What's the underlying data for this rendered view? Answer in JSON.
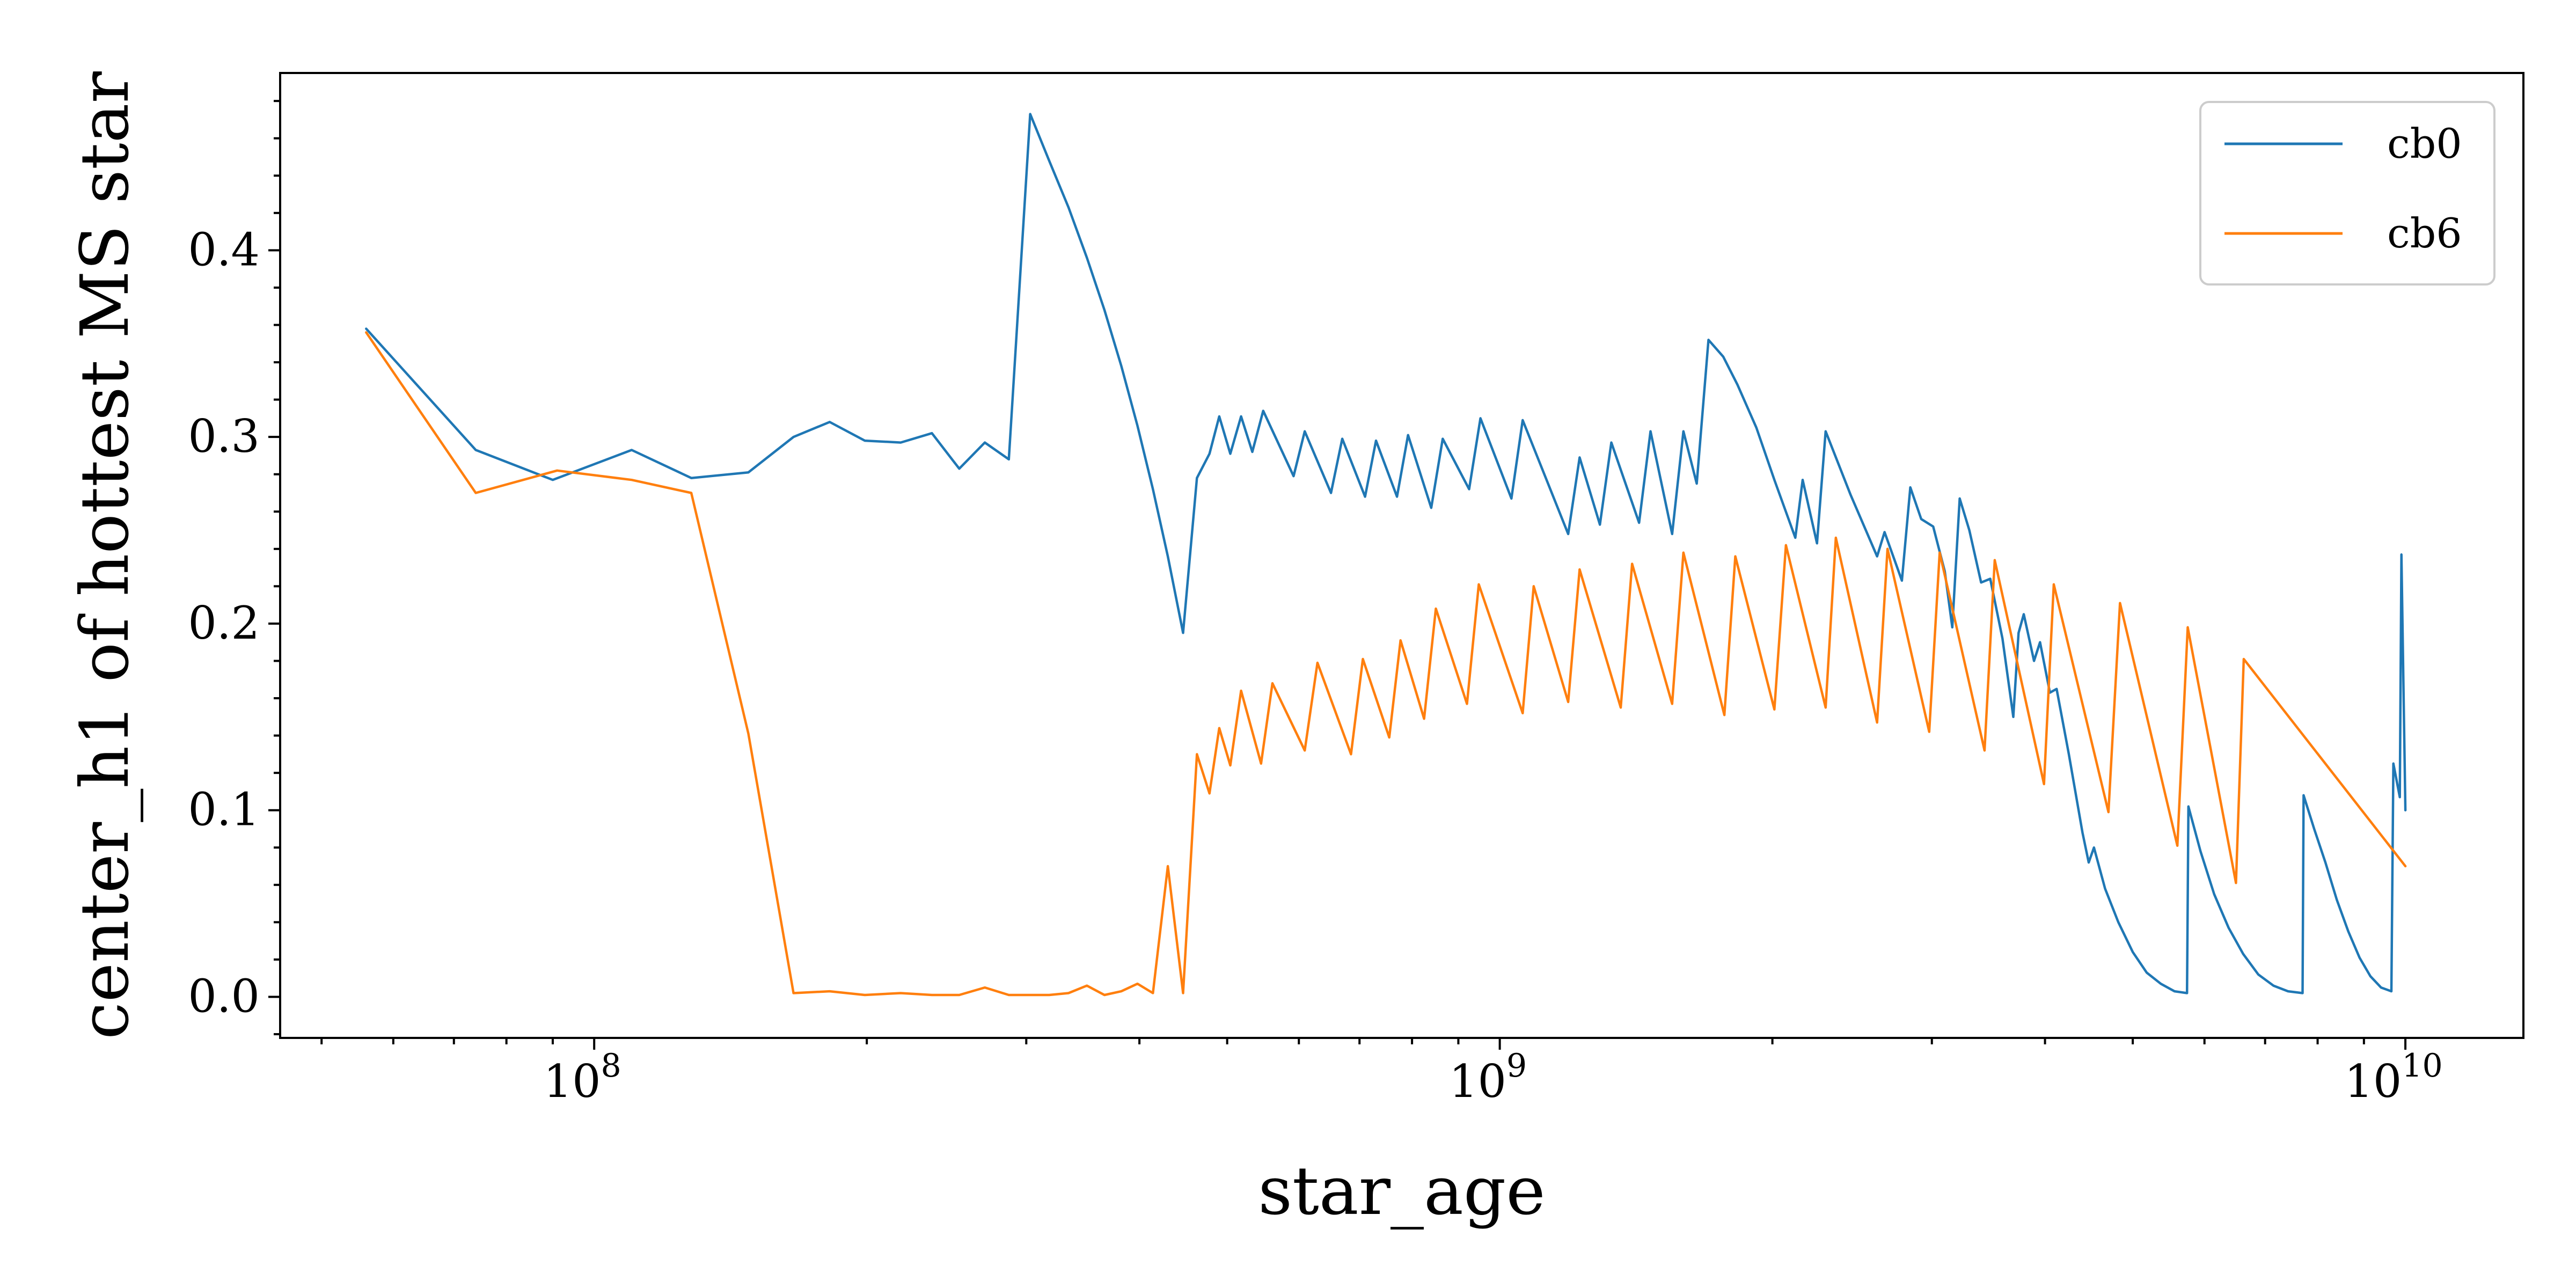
{
  "chart_data": {
    "type": "line",
    "xscale": "log",
    "xlabel": "star_age",
    "ylabel": "center_h1 of hottest MS star",
    "xlim": [
      45000000,
      13500000000
    ],
    "ylim": [
      -0.022,
      0.495
    ],
    "x_major_ticks": [
      {
        "value": 100000000,
        "base": "10",
        "exp": "8"
      },
      {
        "value": 1000000000,
        "base": "10",
        "exp": "9"
      },
      {
        "value": 10000000000,
        "base": "10",
        "exp": "10"
      }
    ],
    "y_ticks": [
      {
        "value": 0.0,
        "label": "0.0"
      },
      {
        "value": 0.1,
        "label": "0.1"
      },
      {
        "value": 0.2,
        "label": "0.2"
      },
      {
        "value": 0.3,
        "label": "0.3"
      },
      {
        "value": 0.4,
        "label": "0.4"
      }
    ],
    "y_minor_step": 0.02,
    "grid": false,
    "legend_position": "top-right",
    "series": [
      {
        "name": "cb0",
        "color": "#1f77b4",
        "points": [
          [
            56000000,
            0.358
          ],
          [
            74000000,
            0.293
          ],
          [
            90000000,
            0.277
          ],
          [
            110000000,
            0.293
          ],
          [
            128000000,
            0.278
          ],
          [
            148000000,
            0.281
          ],
          [
            166000000,
            0.3
          ],
          [
            182000000,
            0.308
          ],
          [
            199000000,
            0.298
          ],
          [
            218000000,
            0.297
          ],
          [
            236000000,
            0.302
          ],
          [
            253000000,
            0.283
          ],
          [
            270000000,
            0.297
          ],
          [
            287000000,
            0.288
          ],
          [
            303000000,
            0.473
          ],
          [
            318000000,
            0.448
          ],
          [
            334000000,
            0.423
          ],
          [
            350000000,
            0.396
          ],
          [
            366000000,
            0.368
          ],
          [
            382000000,
            0.338
          ],
          [
            398000000,
            0.306
          ],
          [
            414000000,
            0.272
          ],
          [
            430000000,
            0.236
          ],
          [
            447000000,
            0.195
          ],
          [
            463000000,
            0.278
          ],
          [
            478000000,
            0.291
          ],
          [
            490000000,
            0.311
          ],
          [
            504000000,
            0.291
          ],
          [
            518000000,
            0.311
          ],
          [
            533000000,
            0.292
          ],
          [
            548000000,
            0.314
          ],
          [
            592000000,
            0.279
          ],
          [
            609000000,
            0.303
          ],
          [
            651000000,
            0.27
          ],
          [
            670000000,
            0.299
          ],
          [
            710000000,
            0.268
          ],
          [
            730000000,
            0.298
          ],
          [
            770000000,
            0.268
          ],
          [
            792000000,
            0.301
          ],
          [
            840000000,
            0.262
          ],
          [
            865000000,
            0.299
          ],
          [
            925000000,
            0.272
          ],
          [
            952000000,
            0.31
          ],
          [
            1030000000,
            0.267
          ],
          [
            1060000000,
            0.309
          ],
          [
            1190000000,
            0.248
          ],
          [
            1225000000,
            0.289
          ],
          [
            1290000000,
            0.253
          ],
          [
            1328000000,
            0.297
          ],
          [
            1425000000,
            0.254
          ],
          [
            1467000000,
            0.303
          ],
          [
            1550000000,
            0.248
          ],
          [
            1595000000,
            0.303
          ],
          [
            1650000000,
            0.275
          ],
          [
            1700000000,
            0.352
          ],
          [
            1765000000,
            0.343
          ],
          [
            1830000000,
            0.328
          ],
          [
            1920000000,
            0.305
          ],
          [
            2010000000,
            0.277
          ],
          [
            2120000000,
            0.246
          ],
          [
            2160000000,
            0.277
          ],
          [
            2240000000,
            0.243
          ],
          [
            2290000000,
            0.303
          ],
          [
            2440000000,
            0.269
          ],
          [
            2610000000,
            0.236
          ],
          [
            2660000000,
            0.249
          ],
          [
            2780000000,
            0.223
          ],
          [
            2840000000,
            0.273
          ],
          [
            2920000000,
            0.256
          ],
          [
            3010000000,
            0.252
          ],
          [
            3100000000,
            0.228
          ],
          [
            3160000000,
            0.198
          ],
          [
            3220000000,
            0.267
          ],
          [
            3300000000,
            0.25
          ],
          [
            3400000000,
            0.222
          ],
          [
            3480000000,
            0.224
          ],
          [
            3590000000,
            0.192
          ],
          [
            3690000000,
            0.15
          ],
          [
            3740000000,
            0.195
          ],
          [
            3790000000,
            0.205
          ],
          [
            3890000000,
            0.18
          ],
          [
            3950000000,
            0.19
          ],
          [
            4050000000,
            0.163
          ],
          [
            4120000000,
            0.165
          ],
          [
            4250000000,
            0.13
          ],
          [
            4400000000,
            0.088
          ],
          [
            4470000000,
            0.072
          ],
          [
            4530000000,
            0.08
          ],
          [
            4660000000,
            0.058
          ],
          [
            4820000000,
            0.04
          ],
          [
            5000000000,
            0.024
          ],
          [
            5180000000,
            0.013
          ],
          [
            5370000000,
            0.007
          ],
          [
            5560000000,
            0.003
          ],
          [
            5740000000,
            0.002
          ],
          [
            5760000000,
            0.102
          ],
          [
            5940000000,
            0.078
          ],
          [
            6150000000,
            0.055
          ],
          [
            6380000000,
            0.037
          ],
          [
            6620000000,
            0.023
          ],
          [
            6880000000,
            0.012
          ],
          [
            7150000000,
            0.006
          ],
          [
            7420000000,
            0.003
          ],
          [
            7700000000,
            0.002
          ],
          [
            7720000000,
            0.108
          ],
          [
            7930000000,
            0.09
          ],
          [
            8160000000,
            0.072
          ],
          [
            8400000000,
            0.052
          ],
          [
            8650000000,
            0.035
          ],
          [
            8900000000,
            0.021
          ],
          [
            9150000000,
            0.011
          ],
          [
            9400000000,
            0.005
          ],
          [
            9650000000,
            0.003
          ],
          [
            9700000000,
            0.125
          ],
          [
            9860000000,
            0.107
          ],
          [
            9900000000,
            0.237
          ],
          [
            10000000000,
            0.1
          ]
        ]
      },
      {
        "name": "cb6",
        "color": "#ff7f0e",
        "points": [
          [
            56000000,
            0.356
          ],
          [
            74000000,
            0.27
          ],
          [
            91000000,
            0.282
          ],
          [
            110000000,
            0.277
          ],
          [
            128000000,
            0.27
          ],
          [
            148000000,
            0.141
          ],
          [
            166000000,
            0.002
          ],
          [
            182000000,
            0.003
          ],
          [
            199000000,
            0.001
          ],
          [
            218000000,
            0.002
          ],
          [
            236000000,
            0.001
          ],
          [
            253000000,
            0.001
          ],
          [
            270000000,
            0.005
          ],
          [
            287000000,
            0.001
          ],
          [
            303000000,
            0.001
          ],
          [
            318000000,
            0.001
          ],
          [
            334000000,
            0.002
          ],
          [
            350000000,
            0.006
          ],
          [
            366000000,
            0.001
          ],
          [
            382000000,
            0.003
          ],
          [
            398000000,
            0.007
          ],
          [
            414000000,
            0.002
          ],
          [
            430000000,
            0.07
          ],
          [
            447000000,
            0.002
          ],
          [
            463000000,
            0.13
          ],
          [
            478000000,
            0.109
          ],
          [
            490000000,
            0.144
          ],
          [
            504000000,
            0.124
          ],
          [
            518000000,
            0.164
          ],
          [
            545000000,
            0.125
          ],
          [
            561000000,
            0.168
          ],
          [
            609000000,
            0.132
          ],
          [
            629000000,
            0.179
          ],
          [
            685000000,
            0.13
          ],
          [
            706000000,
            0.181
          ],
          [
            755000000,
            0.139
          ],
          [
            777000000,
            0.191
          ],
          [
            825000000,
            0.149
          ],
          [
            850000000,
            0.208
          ],
          [
            920000000,
            0.157
          ],
          [
            948000000,
            0.221
          ],
          [
            1060000000,
            0.152
          ],
          [
            1090000000,
            0.22
          ],
          [
            1190000000,
            0.158
          ],
          [
            1225000000,
            0.229
          ],
          [
            1360000000,
            0.155
          ],
          [
            1400000000,
            0.232
          ],
          [
            1550000000,
            0.157
          ],
          [
            1595000000,
            0.238
          ],
          [
            1770000000,
            0.151
          ],
          [
            1820000000,
            0.236
          ],
          [
            2010000000,
            0.154
          ],
          [
            2070000000,
            0.242
          ],
          [
            2290000000,
            0.155
          ],
          [
            2350000000,
            0.246
          ],
          [
            2610000000,
            0.147
          ],
          [
            2680000000,
            0.24
          ],
          [
            2980000000,
            0.142
          ],
          [
            3060000000,
            0.238
          ],
          [
            3430000000,
            0.132
          ],
          [
            3520000000,
            0.234
          ],
          [
            3990000000,
            0.114
          ],
          [
            4090000000,
            0.221
          ],
          [
            4700000000,
            0.099
          ],
          [
            4840000000,
            0.211
          ],
          [
            5600000000,
            0.081
          ],
          [
            5750000000,
            0.198
          ],
          [
            6500000000,
            0.061
          ],
          [
            6630000000,
            0.181
          ],
          [
            10000000000,
            0.07
          ]
        ]
      }
    ]
  }
}
